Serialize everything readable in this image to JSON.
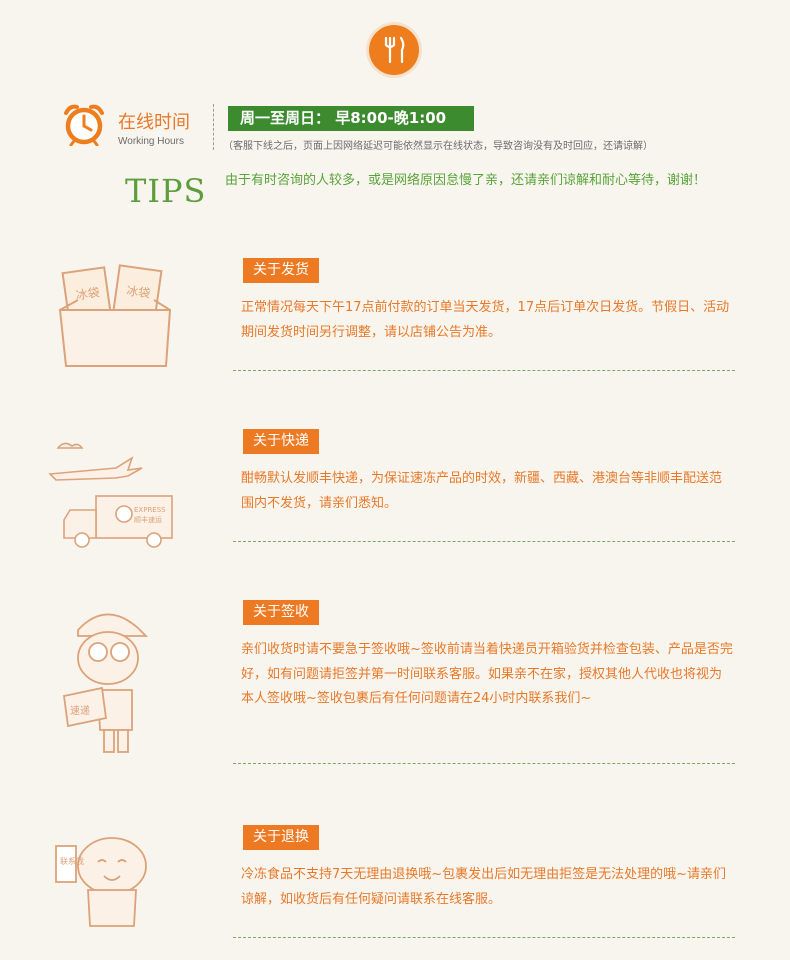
{
  "working_hours": {
    "title": "在线时间",
    "subtitle": "Working Hours",
    "hours": "周一至周日：  早8:00-晚1:00",
    "note": "（客服下线之后，页面上因网络延迟可能依然显示在线状态，导致咨询没有及时回应，还请谅解）"
  },
  "tips": {
    "label": "TIPS",
    "text": "由于有时咨询的人较多，或是网络原因怠慢了亲，还请亲们谅解和耐心等待，谢谢！"
  },
  "sections": [
    {
      "title": "关于发货",
      "text": "正常情况每天下午17点前付款的订单当天发货，17点后订单次日发货。节假日、活动期间发货时间另行调整，请以店铺公告为准。",
      "illustration_text": [
        "冰袋",
        "冰袋"
      ]
    },
    {
      "title": "关于快递",
      "text": "酣畅默认发顺丰快递，为保证速冻产品的时效，新疆、西藏、港澳台等非顺丰配送范围内不发货，请亲们悉知。",
      "illustration_text": [
        "EXPRESS",
        "顺丰速运"
      ]
    },
    {
      "title": "关于签收",
      "text": "亲们收货时请不要急于签收哦~签收前请当着快递员开箱验货并检查包装、产品是否完好，如有问题请拒签并第一时间联系客服。如果亲不在家，授权其他人代收也将视为本人签收哦~签收包裹后有任何问题请在24小时内联系我们~",
      "illustration_text": [
        "速递"
      ]
    },
    {
      "title": "关于退换",
      "text": "冷冻食品不支持7天无理由退换哦~包裹发出后如无理由拒签是无法处理的哦~请亲们谅解，如收货后有任何疑问请联系在线客服。",
      "illustration_text": [
        "联系我"
      ]
    }
  ],
  "colors": {
    "orange": "#ed7a23",
    "green": "#3d8b2f",
    "text_green": "#59a43a",
    "background": "#f8f5ee"
  }
}
